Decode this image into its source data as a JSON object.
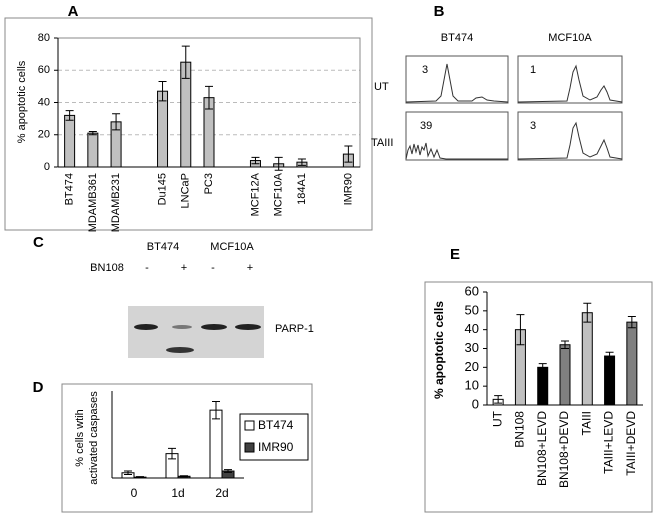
{
  "chart_data": [
    {
      "type": "bar",
      "panel": "A",
      "y_label": "% apoptotic cells",
      "categories": [
        "BT474",
        "MDAMB361",
        "MDAMB231",
        null,
        "Du145",
        "LNCaP",
        "PC3",
        null,
        "MCF12A",
        "MCF10A",
        "184A1",
        null,
        "IMR90"
      ],
      "values": [
        32,
        21,
        28,
        null,
        47,
        65,
        43,
        null,
        4,
        2,
        3,
        null,
        8
      ],
      "errors": [
        3,
        1,
        5,
        null,
        6,
        10,
        7,
        null,
        2,
        4,
        2,
        null,
        5
      ],
      "color": "#c0c0c0",
      "ylim": [
        0,
        80
      ],
      "yticks": [
        0,
        20,
        40,
        60,
        80
      ],
      "grid": true
    },
    {
      "type": "bar",
      "panel": "D",
      "y_label": [
        "% cells wtih",
        "activated caspases"
      ],
      "categories": [
        "0",
        "1d",
        "2d"
      ],
      "series": [
        {
          "name": "BT474",
          "color": "#ffffff",
          "values": [
            3,
            14,
            39
          ],
          "errors": [
            1,
            3,
            5
          ]
        },
        {
          "name": "IMR90",
          "color": "#404040",
          "values": [
            0.5,
            1,
            4
          ],
          "errors": [
            0.3,
            0.3,
            0.8
          ]
        }
      ],
      "ylim": [
        0,
        50
      ],
      "legend": "right"
    },
    {
      "type": "bar",
      "panel": "E",
      "y_label": "% apoptotic cells",
      "categories": [
        "UT",
        "BN108",
        "BN108+LEVD",
        "BN108+DEVD",
        "TAIII",
        "TAIII+LEVD",
        "TAIII+DEVD"
      ],
      "values": [
        3,
        40,
        20,
        32,
        49,
        26,
        44
      ],
      "errors": [
        2,
        8,
        2,
        2,
        5,
        2,
        3
      ],
      "colors": [
        "#ffffff",
        "#c0c0c0",
        "#000000",
        "#808080",
        "#c0c0c0",
        "#000000",
        "#808080"
      ],
      "ylim": [
        0,
        60
      ],
      "yticks": [
        0,
        10,
        20,
        30,
        40,
        50,
        60
      ]
    }
  ],
  "panel_b": {
    "panel": "B",
    "columns": [
      "BT474",
      "MCF10A"
    ],
    "rows": [
      "UT",
      "TAIII"
    ],
    "numbers": [
      [
        3,
        1
      ],
      [
        39,
        3
      ]
    ]
  },
  "panel_c": {
    "panel": "C",
    "columns": [
      "BT474",
      "MCF10A"
    ],
    "treatment": "BN108",
    "signs": [
      "-",
      "+",
      "-",
      "+"
    ],
    "band": "PARP-1"
  }
}
